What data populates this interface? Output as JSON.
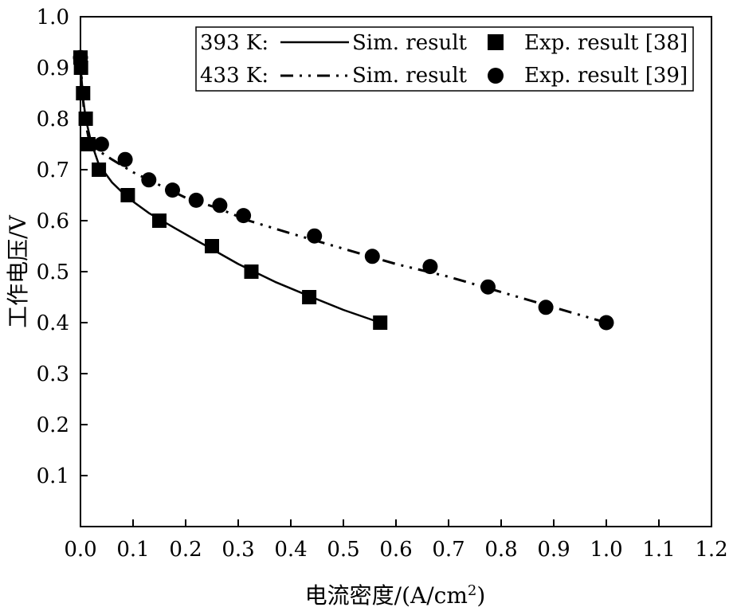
{
  "chart_data": {
    "type": "line",
    "title": "",
    "xlabel": "电流密度/(A/cm",
    "xlabel_sup": "2",
    "xlabel_suffix": ")",
    "ylabel": "工作电压/V",
    "xlim": [
      0.0,
      1.2
    ],
    "ylim": [
      0.0,
      1.0
    ],
    "xticks": [
      "0.0",
      "0.1",
      "0.2",
      "0.3",
      "0.4",
      "0.5",
      "0.6",
      "0.7",
      "0.8",
      "0.9",
      "1.0",
      "1.1",
      "1.2"
    ],
    "yticks": [
      "0.1",
      "0.2",
      "0.3",
      "0.4",
      "0.5",
      "0.6",
      "0.7",
      "0.8",
      "0.9",
      "1.0"
    ],
    "grid": false,
    "legend_position": "top-right",
    "legend": {
      "row1_temp": "393 K:",
      "row2_temp": "433 K:",
      "sim_label": "Sim. result",
      "exp38_label": "Exp. result [38]",
      "exp39_label": "Exp. result [39]"
    },
    "series": [
      {
        "name": "Sim. result",
        "group": "393 K",
        "kind": "line",
        "style": "solid",
        "x": [
          0.0005,
          0.002,
          0.005,
          0.01,
          0.02,
          0.035,
          0.06,
          0.09,
          0.13,
          0.18,
          0.24,
          0.3,
          0.37,
          0.44,
          0.5,
          0.57
        ],
        "y": [
          0.92,
          0.88,
          0.84,
          0.8,
          0.755,
          0.71,
          0.675,
          0.645,
          0.615,
          0.585,
          0.55,
          0.515,
          0.48,
          0.45,
          0.425,
          0.4
        ]
      },
      {
        "name": "Exp. result [38]",
        "group": "393 K",
        "kind": "scatter",
        "marker": "square",
        "x": [
          0.0,
          0.001,
          0.005,
          0.01,
          0.015,
          0.035,
          0.09,
          0.15,
          0.25,
          0.325,
          0.435,
          0.57
        ],
        "y": [
          0.92,
          0.9,
          0.85,
          0.8,
          0.75,
          0.7,
          0.65,
          0.6,
          0.55,
          0.5,
          0.45,
          0.4
        ]
      },
      {
        "name": "Sim. result",
        "group": "433 K",
        "kind": "line",
        "style": "dashdotdot",
        "x": [
          0.0005,
          0.003,
          0.008,
          0.015,
          0.03,
          0.06,
          0.1,
          0.15,
          0.2,
          0.26,
          0.32,
          0.4,
          0.5,
          0.6,
          0.7,
          0.8,
          0.9,
          1.0
        ],
        "y": [
          0.92,
          0.86,
          0.8,
          0.765,
          0.74,
          0.72,
          0.695,
          0.67,
          0.645,
          0.625,
          0.6,
          0.575,
          0.545,
          0.515,
          0.49,
          0.46,
          0.43,
          0.4
        ]
      },
      {
        "name": "Exp. result [39]",
        "group": "433 K",
        "kind": "scatter",
        "marker": "circle",
        "x": [
          0.0,
          0.04,
          0.085,
          0.13,
          0.175,
          0.22,
          0.265,
          0.31,
          0.445,
          0.555,
          0.665,
          0.775,
          0.885,
          1.0
        ],
        "y": [
          0.92,
          0.75,
          0.72,
          0.68,
          0.66,
          0.64,
          0.63,
          0.61,
          0.57,
          0.53,
          0.51,
          0.47,
          0.43,
          0.4
        ]
      }
    ]
  }
}
